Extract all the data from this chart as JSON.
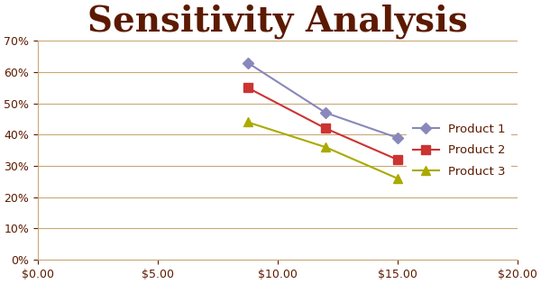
{
  "title": "Sensitivity Analysis",
  "title_color": "#5C1A00",
  "title_fontsize": 28,
  "title_fontweight": "bold",
  "background_color": "#FFFFFF",
  "plot_bg_color": "#FFFFFF",
  "legend_bg_color": "#FFFFFF",
  "series": [
    {
      "label": "Product 1",
      "x": [
        8.75,
        12.0,
        15.0
      ],
      "y": [
        0.63,
        0.47,
        0.39
      ],
      "color": "#8888BB",
      "marker": "D",
      "markersize": 6,
      "linewidth": 1.5
    },
    {
      "label": "Product 2",
      "x": [
        8.75,
        12.0,
        15.0
      ],
      "y": [
        0.55,
        0.42,
        0.32
      ],
      "color": "#CC3333",
      "marker": "s",
      "markersize": 7,
      "linewidth": 1.5
    },
    {
      "label": "Product 3",
      "x": [
        8.75,
        12.0,
        15.0
      ],
      "y": [
        0.44,
        0.36,
        0.26
      ],
      "color": "#AAAA00",
      "marker": "^",
      "markersize": 7,
      "linewidth": 1.5
    }
  ],
  "xlim": [
    0,
    20
  ],
  "ylim": [
    0,
    0.7
  ],
  "xticks": [
    0,
    5,
    10,
    15,
    20
  ],
  "yticks": [
    0.0,
    0.1,
    0.2,
    0.3,
    0.4,
    0.5,
    0.6,
    0.7
  ],
  "grid_color": "#C8A878",
  "grid_linewidth": 0.8,
  "legend_fontsize": 9.5,
  "tick_label_color": "#5C1A00",
  "tick_fontsize": 9,
  "spine_color": "#C8A878"
}
